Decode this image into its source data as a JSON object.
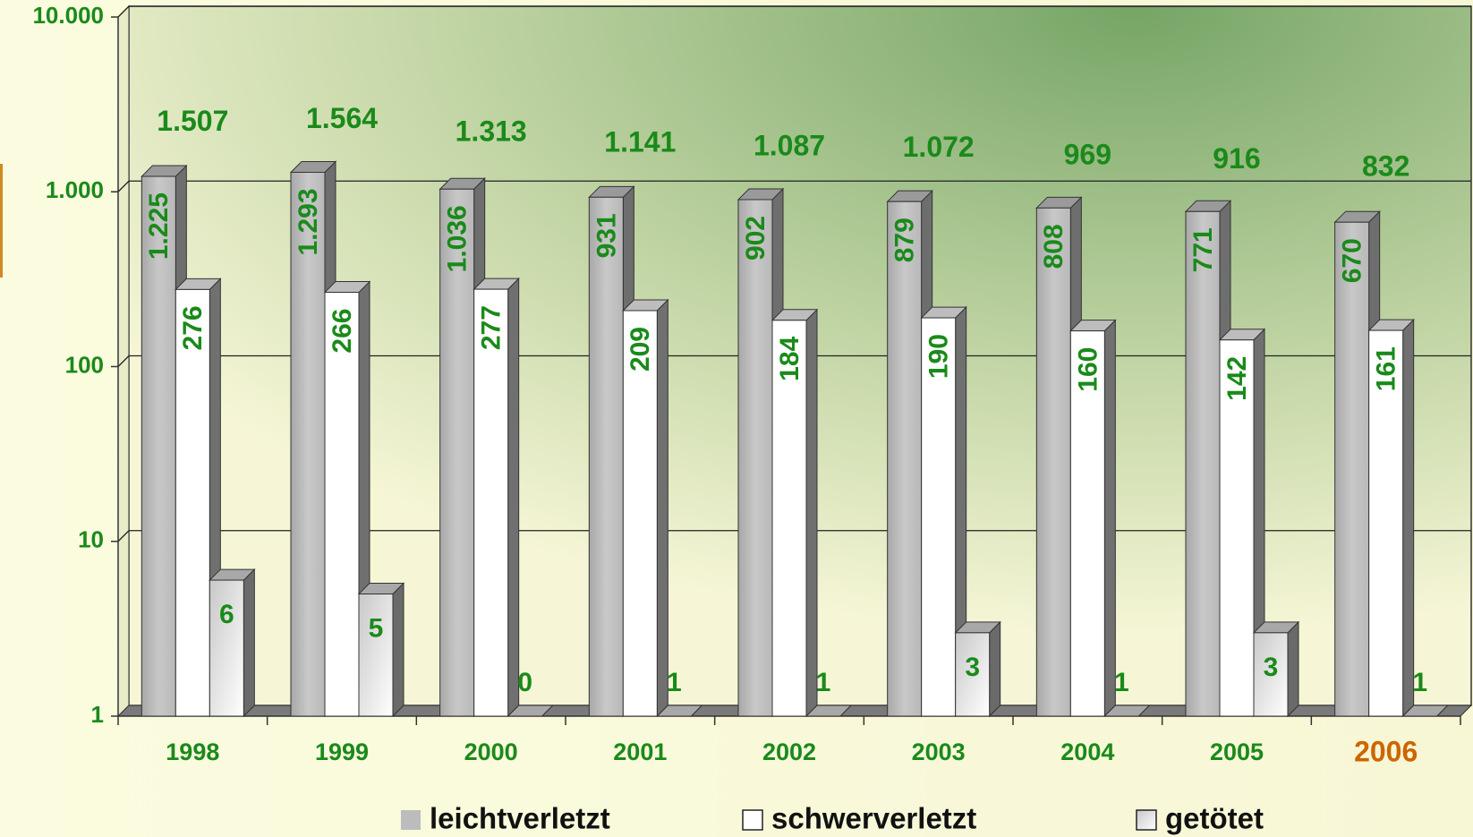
{
  "chart_data": {
    "type": "bar3d",
    "categories": [
      "1998",
      "1999",
      "2000",
      "2001",
      "2002",
      "2003",
      "2004",
      "2005",
      "2006"
    ],
    "highlight": {
      "index": 8,
      "color": "#cc6600"
    },
    "log_scale": true,
    "ylim": [
      1,
      10000
    ],
    "yticks": [
      1,
      10,
      100,
      {
        "value": 1000,
        "label": "1.000"
      },
      {
        "value": 10000,
        "label": "10.000"
      }
    ],
    "grid": true,
    "legend": "bottom",
    "label_color": "#1a8a1a",
    "series": [
      {
        "name": "leichtverletzt",
        "color": "#c0c0c0",
        "values": [
          1225,
          1293,
          1036,
          931,
          902,
          879,
          808,
          771,
          670
        ],
        "value_labels": [
          "1.225",
          "1.293",
          "1.036",
          "931",
          "902",
          "879",
          "808",
          "771",
          "670"
        ]
      },
      {
        "name": "schwerverletzt",
        "color": "#ffffff",
        "values": [
          276,
          266,
          277,
          209,
          184,
          190,
          160,
          142,
          161
        ]
      },
      {
        "name": "getötet",
        "color": "#e4e4e4",
        "values": [
          6,
          5,
          0,
          1,
          1,
          3,
          1,
          3,
          1
        ]
      }
    ],
    "totals": {
      "values": [
        1507,
        1564,
        1313,
        1141,
        1087,
        1072,
        969,
        916,
        832
      ],
      "value_labels": [
        "1.507",
        "1.564",
        "1.313",
        "1.141",
        "1.087",
        "1.072",
        "969",
        "916",
        "832"
      ]
    }
  }
}
